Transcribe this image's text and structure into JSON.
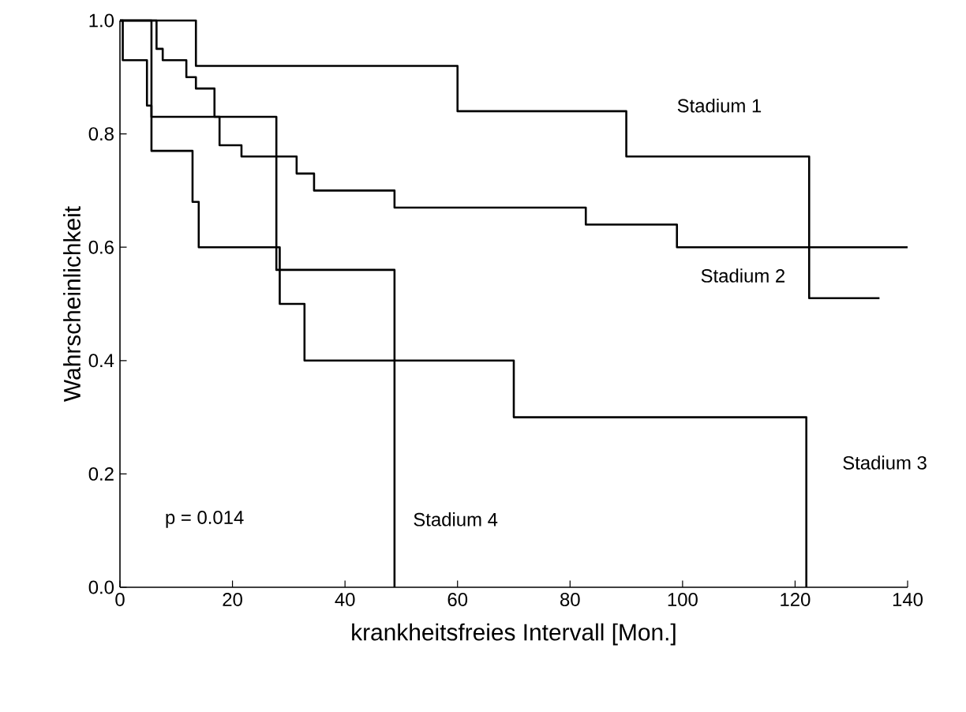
{
  "chart_data": {
    "type": "step",
    "xlabel": "krankheitsfreies Intervall [Mon.]",
    "ylabel": "Wahrscheinlichkeit",
    "xlim": [
      0,
      140
    ],
    "ylim": [
      0,
      1
    ],
    "xticks": [
      0,
      20,
      40,
      60,
      80,
      100,
      120,
      140
    ],
    "yticks": [
      {
        "value": 0,
        "label": "0.0"
      },
      {
        "value": 0.2,
        "label": "0.2"
      },
      {
        "value": 0.4,
        "label": "0.4"
      },
      {
        "value": 0.6,
        "label": "0.6"
      },
      {
        "value": 0.8,
        "label": "0.8"
      },
      {
        "value": 1,
        "label": "1.0"
      }
    ],
    "grid": false,
    "legend": false,
    "marker": "none",
    "line_style": "solid",
    "annotations": [
      "p  =  0.014"
    ],
    "series": [
      {
        "name": "Stadium 1",
        "color": "#000000",
        "x": [
          0,
          13.5,
          60,
          90,
          122.5,
          135
        ],
        "values": [
          1,
          0.92,
          0.84,
          0.76,
          0.51,
          0.51
        ]
      },
      {
        "name": "Stadium 2",
        "color": "#000000",
        "x": [
          0,
          6.5,
          7.6,
          11.8,
          13.5,
          16.8,
          17.7,
          21.6,
          31.4,
          34.5,
          48.8,
          82.8,
          99,
          140
        ],
        "values": [
          1,
          0.95,
          0.93,
          0.9,
          0.88,
          0.83,
          0.78,
          0.76,
          0.73,
          0.7,
          0.67,
          0.64,
          0.6,
          0.6
        ]
      },
      {
        "name": "Stadium 3",
        "color": "#000000",
        "x": [
          0,
          0.5,
          4.8,
          5.6,
          12.9,
          14,
          28.4,
          32.8,
          70,
          122
        ],
        "values": [
          1,
          0.93,
          0.85,
          0.77,
          0.68,
          0.6,
          0.5,
          0.4,
          0.3,
          0
        ]
      },
      {
        "name": "Stadium 4",
        "color": "#000000",
        "x": [
          0,
          5.6,
          27.8,
          48.8
        ],
        "values": [
          1,
          0.83,
          0.56,
          0
        ]
      }
    ]
  }
}
